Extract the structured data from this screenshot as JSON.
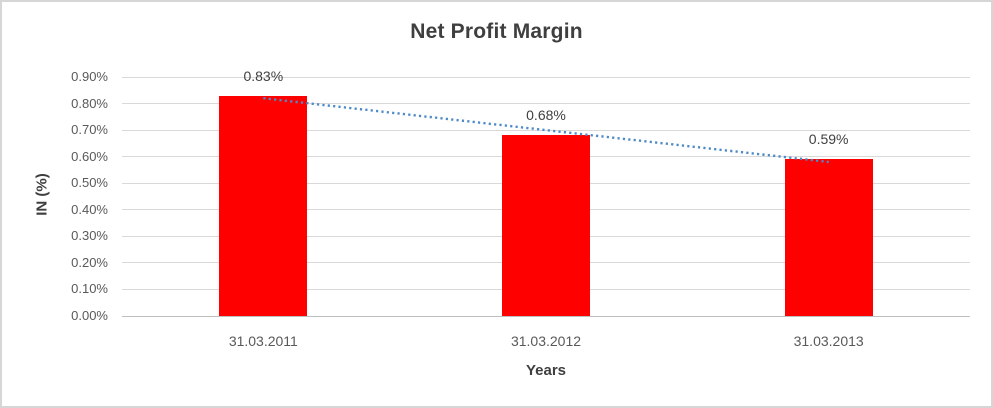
{
  "chart_data": {
    "type": "bar",
    "title": "Net Profit Margin",
    "xlabel": "Years",
    "ylabel": "IN (%)",
    "categories": [
      "31.03.2011",
      "31.03.2012",
      "31.03.2013"
    ],
    "values": [
      0.83,
      0.68,
      0.59
    ],
    "data_labels": [
      "0.83%",
      "0.68%",
      "0.59%"
    ],
    "ylim": [
      0,
      0.9
    ],
    "ytick_values": [
      0.0,
      0.1,
      0.2,
      0.3,
      0.4,
      0.5,
      0.6,
      0.7,
      0.8,
      0.9
    ],
    "ytick_labels": [
      "0.00%",
      "0.10%",
      "0.20%",
      "0.30%",
      "0.40%",
      "0.50%",
      "0.60%",
      "0.70%",
      "0.80%",
      "0.90%"
    ],
    "grid": true,
    "legend": "none",
    "trendline": {
      "type": "linear",
      "style": "dotted",
      "fit_values": [
        0.82,
        0.58
      ]
    },
    "colors": {
      "bar": "#ff0000",
      "trendline": "#4e8ac9",
      "gridline": "#d9d9d9",
      "axis_line": "#bfbfbf",
      "title_text": "#3f3f3f",
      "tick_text": "#595959",
      "data_label_text": "#404040"
    }
  }
}
